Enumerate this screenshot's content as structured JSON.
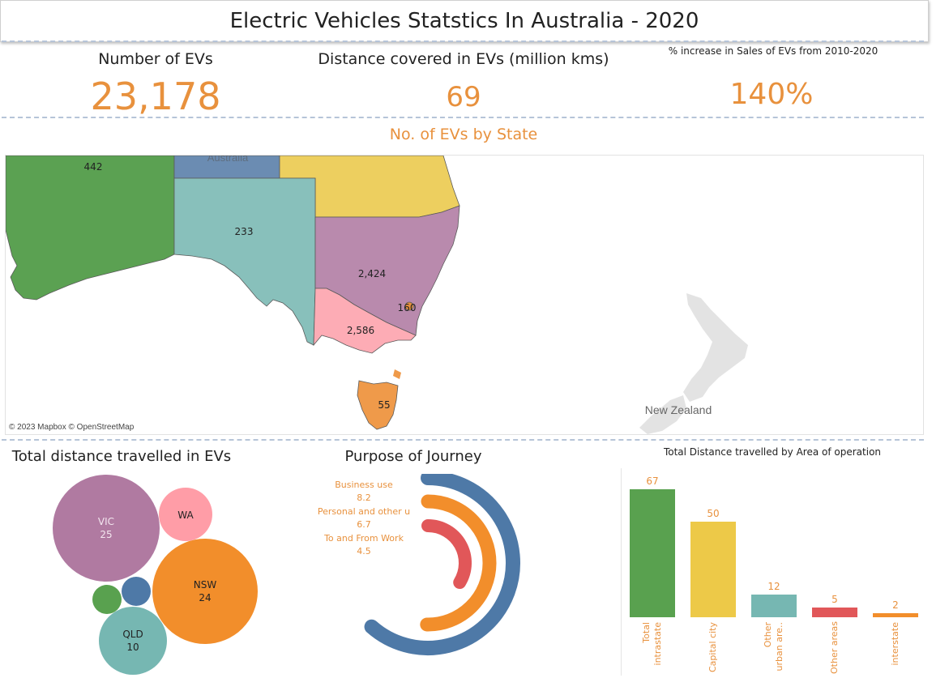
{
  "title": "Electric Vehicles Statstics In Australia - 2020",
  "kpis": {
    "evs_label": "Number of EVs",
    "evs_value": "23,178",
    "distance_label": "Distance covered  in EVs (million kms)",
    "distance_value": "69",
    "increase_label": "% increase in Sales of EVs  from 2010-2020",
    "increase_value": "140%"
  },
  "map": {
    "title": "No. of EVs by State",
    "attribution": "© 2023 Mapbox © OpenStreetMap",
    "nz_label": "New Zealand",
    "australia_label": "Australia",
    "states": [
      {
        "code": "WA",
        "value": "442",
        "color": "#5ba152"
      },
      {
        "code": "NT",
        "value": "",
        "color": "#6b8cb2"
      },
      {
        "code": "QLD",
        "value": "",
        "color": "#edcf5f"
      },
      {
        "code": "SA",
        "value": "233",
        "color": "#88c0bb"
      },
      {
        "code": "NSW",
        "value": "2,424",
        "color": "#b98aad"
      },
      {
        "code": "ACT",
        "value": "160",
        "color": "#e8913d"
      },
      {
        "code": "VIC",
        "value": "2,586",
        "color": "#fdacb5"
      },
      {
        "code": "TAS",
        "value": "55",
        "color": "#ef9a4a"
      }
    ]
  },
  "chart_data": [
    {
      "type": "bubble",
      "title": "Total distance travelled in EVs",
      "bubbles": [
        {
          "label": "VIC",
          "value": 25,
          "color": "#b07aa1"
        },
        {
          "label": "NSW",
          "value": 24,
          "color": "#f28e2b"
        },
        {
          "label": "QLD",
          "value": 10,
          "color": "#76b7b2"
        },
        {
          "label": "WA",
          "value": null,
          "color": "#ff9da7"
        },
        {
          "label": "",
          "value": null,
          "color": "#4e79a7"
        },
        {
          "label": "",
          "value": null,
          "color": "#59a14f"
        }
      ]
    },
    {
      "type": "radial_bar",
      "title": "Purpose of Journey",
      "series": [
        {
          "name": "Business use",
          "value": 8.2,
          "color": "#4e79a7"
        },
        {
          "name": "Personal and other u",
          "value": 6.7,
          "color": "#f28e2b"
        },
        {
          "name": "To and From Work",
          "value": 4.5,
          "color": "#e15759"
        }
      ]
    },
    {
      "type": "bar",
      "title": "Total Distance travelled by Area of operation",
      "categories": [
        "Total\nintrastate",
        "Capital city",
        "Other\nurban are..",
        "Other areas",
        "interstate"
      ],
      "values": [
        67,
        50,
        12,
        5,
        2
      ],
      "colors": [
        "#59a14f",
        "#edc948",
        "#76b7b2",
        "#e15759",
        "#f28e2b"
      ],
      "ylim": [
        0,
        67
      ]
    }
  ]
}
